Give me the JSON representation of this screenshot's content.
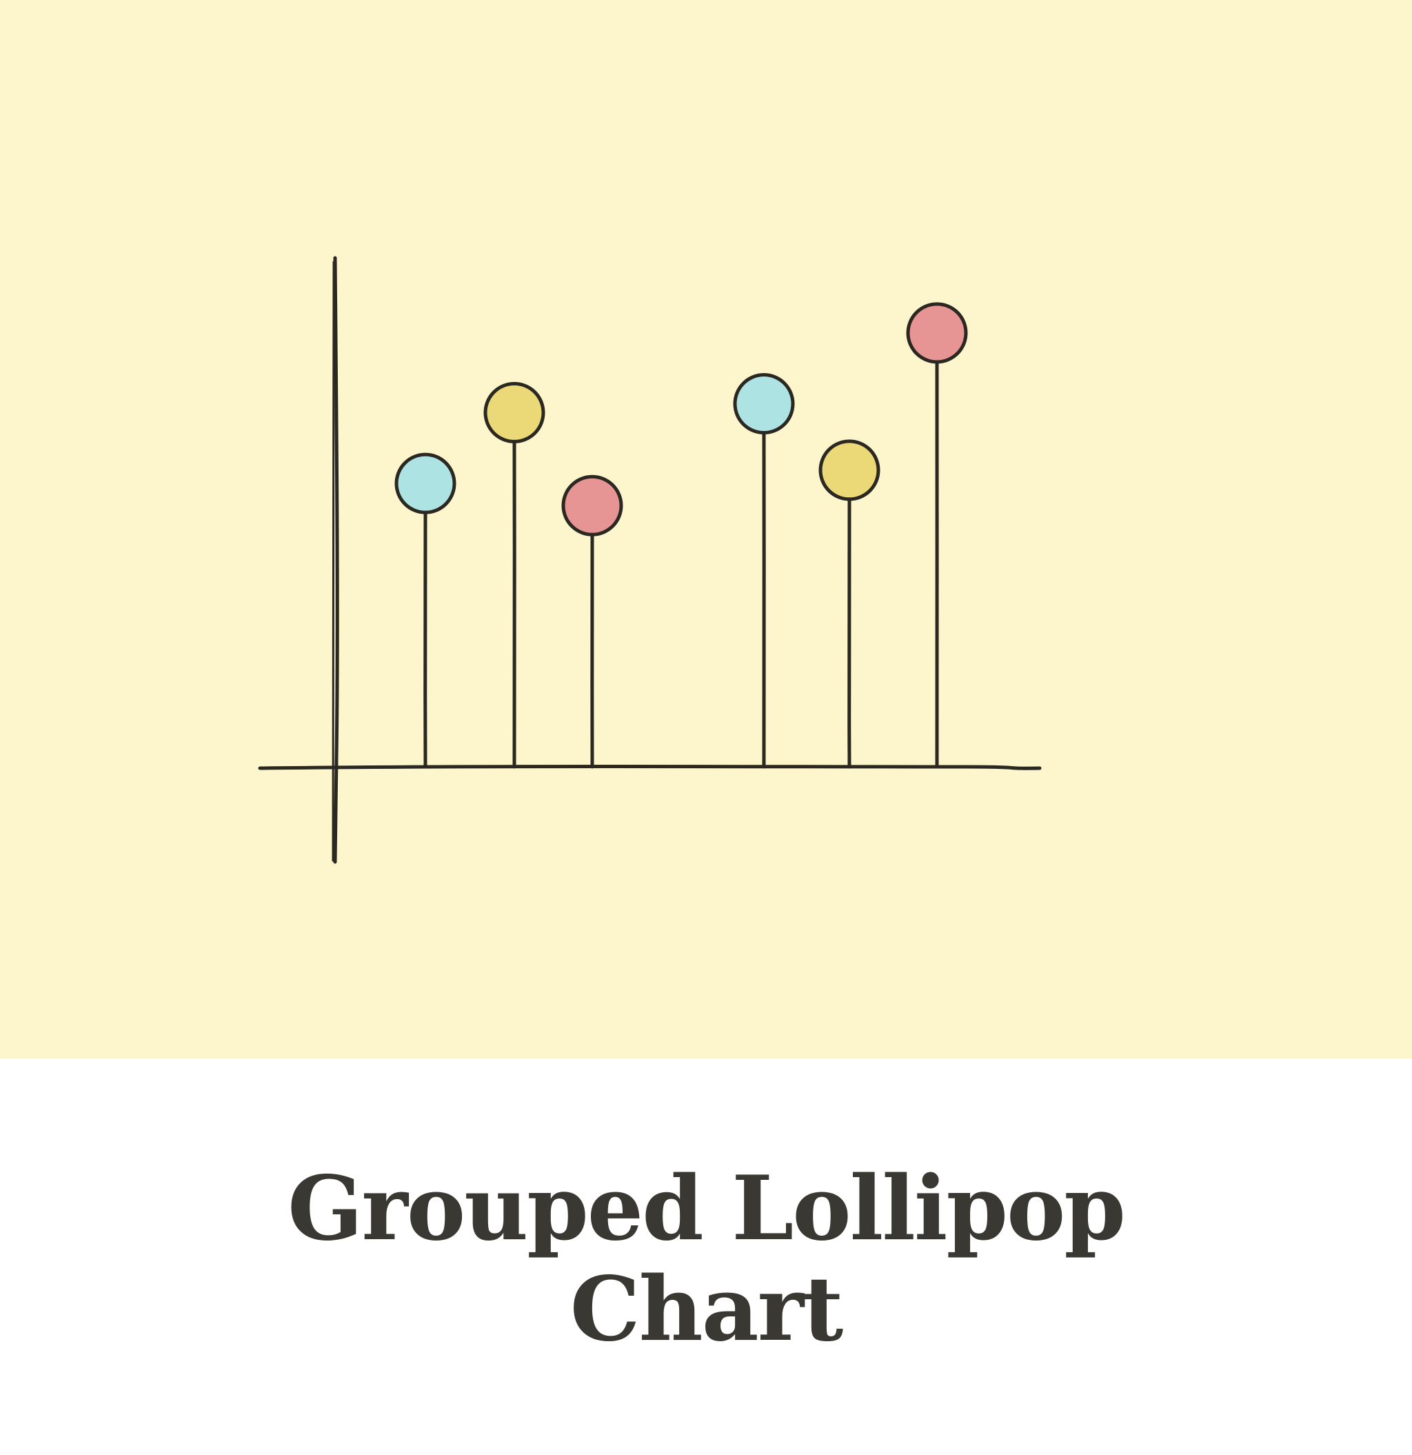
{
  "caption": {
    "line1": "Grouped Lollipop",
    "line2": "Chart"
  },
  "colors": {
    "background_panel": "#fdf5cc",
    "ink": "#2b2822",
    "cyan": "#ade3e2",
    "yellow": "#ebd977",
    "red": "#e79494",
    "caption_text": "#3a3833"
  },
  "lollipops": [
    {
      "group": 1,
      "color": "cyan",
      "level": 0.64
    },
    {
      "group": 1,
      "color": "yellow",
      "level": 0.8
    },
    {
      "group": 1,
      "color": "red",
      "level": 0.59
    },
    {
      "group": 2,
      "color": "cyan",
      "level": 0.82
    },
    {
      "group": 2,
      "color": "yellow",
      "level": 0.67
    },
    {
      "group": 2,
      "color": "red",
      "level": 0.98
    }
  ]
}
